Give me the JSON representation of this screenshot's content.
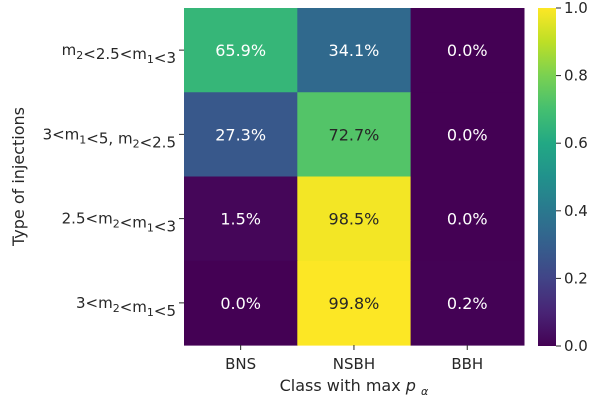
{
  "chart_data": {
    "type": "heatmap",
    "x_categories": [
      "BNS",
      "NSBH",
      "BBH"
    ],
    "y_categories": [
      {
        "id": "r1",
        "parts": [
          {
            "t": "m"
          },
          {
            "t": "2",
            "sub": true
          },
          {
            "t": "<2.5<m"
          },
          {
            "t": "1",
            "sub": true
          },
          {
            "t": "<3"
          }
        ]
      },
      {
        "id": "r2",
        "parts": [
          {
            "t": "3<m"
          },
          {
            "t": "1",
            "sub": true
          },
          {
            "t": "<5, m"
          },
          {
            "t": "2",
            "sub": true
          },
          {
            "t": "<2.5"
          }
        ]
      },
      {
        "id": "r3",
        "parts": [
          {
            "t": "2.5<m"
          },
          {
            "t": "2",
            "sub": true
          },
          {
            "t": "<m"
          },
          {
            "t": "1",
            "sub": true
          },
          {
            "t": "<3"
          }
        ]
      },
      {
        "id": "r4",
        "parts": [
          {
            "t": "3<m"
          },
          {
            "t": "2",
            "sub": true
          },
          {
            "t": "<m"
          },
          {
            "t": "1",
            "sub": true
          },
          {
            "t": "<5"
          }
        ]
      }
    ],
    "values": [
      [
        0.659,
        0.341,
        0.0
      ],
      [
        0.273,
        0.727,
        0.0
      ],
      [
        0.015,
        0.985,
        0.0
      ],
      [
        0.0,
        0.998,
        0.002
      ]
    ],
    "annotations": [
      [
        "65.9%",
        "34.1%",
        "0.0%"
      ],
      [
        "27.3%",
        "72.7%",
        "0.0%"
      ],
      [
        "1.5%",
        "98.5%",
        "0.0%"
      ],
      [
        "0.0%",
        "99.8%",
        "0.2%"
      ]
    ],
    "xlabel": "Class with max ",
    "xlabel_math": "p",
    "xlabel_math_sub": "α",
    "ylabel": "Type of injections",
    "colormap": "viridis",
    "vmin": 0.0,
    "vmax": 1.0,
    "colorbar_ticks": [
      "0.0",
      "0.2",
      "0.4",
      "0.6",
      "0.8",
      "1.0"
    ]
  }
}
